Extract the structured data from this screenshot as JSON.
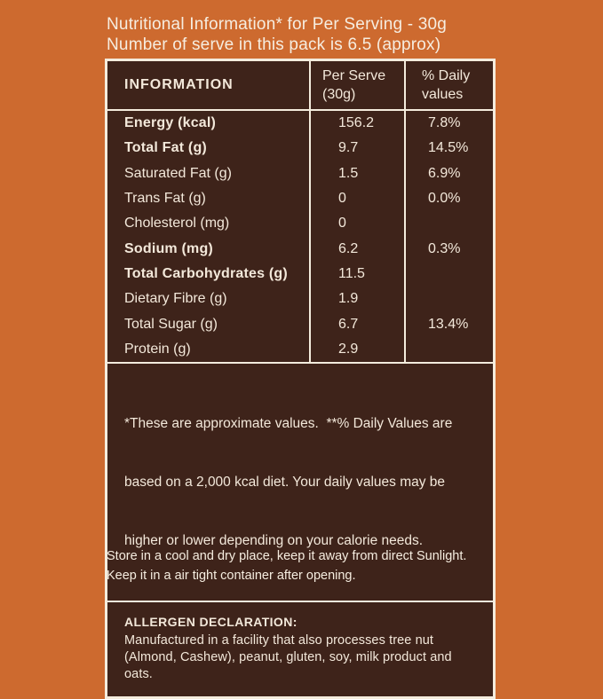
{
  "colors": {
    "background": "#cd6a2f",
    "panel_background": "#3e231a",
    "border_cream": "#f4ecdd",
    "text_cream": "#f3e8da"
  },
  "title": {
    "line1": "Nutritional Information* for Per Serving - 30g",
    "line2": "Number of serve in this pack is 6.5 (approx)"
  },
  "table": {
    "header": {
      "information": "INFORMATION",
      "per_serve_line1": "Per Serve",
      "per_serve_line2": "(30g)",
      "daily_line1": "% Daily",
      "daily_line2": "values"
    },
    "rows": [
      {
        "label": "Energy (kcal)",
        "value": "156.2",
        "daily": "7.8%"
      },
      {
        "label": "Total Fat (g)",
        "value": "9.7",
        "daily": "14.5%"
      },
      {
        "label": "Saturated Fat (g)",
        "value": "1.5",
        "daily": "6.9%"
      },
      {
        "label": "Trans Fat (g)",
        "value": "0",
        "daily": "0.0%"
      },
      {
        "label": "Cholesterol (mg)",
        "value": "0",
        "daily": ""
      },
      {
        "label": "Sodium (mg)",
        "value": "6.2",
        "daily": "0.3%"
      },
      {
        "label": "Total Carbohydrates (g)",
        "value": "11.5",
        "daily": ""
      },
      {
        "label": "Dietary Fibre (g)",
        "value": "1.9",
        "daily": ""
      },
      {
        "label": "Total Sugar (g)",
        "value": "6.7",
        "daily": "13.4%"
      },
      {
        "label": "Protein (g)",
        "value": "2.9",
        "daily": ""
      }
    ],
    "footnote": {
      "line1": "*These are approximate values.  **% Daily Values are",
      "line2": "based on a 2,000 kcal diet. Your daily values may be",
      "line3": "higher or lower depending on your calorie needs."
    },
    "allergen": {
      "title": "ALLERGEN DECLARATION:",
      "line1": "Manufactured in a facility that also processes tree nut",
      "line2": "(Almond, Cashew), peanut, gluten, soy, milk product and oats."
    }
  },
  "storage": {
    "line1": "Store in a cool and dry place, keep it away from direct Sunlight.",
    "line2": "Keep it in a air tight container after opening."
  }
}
